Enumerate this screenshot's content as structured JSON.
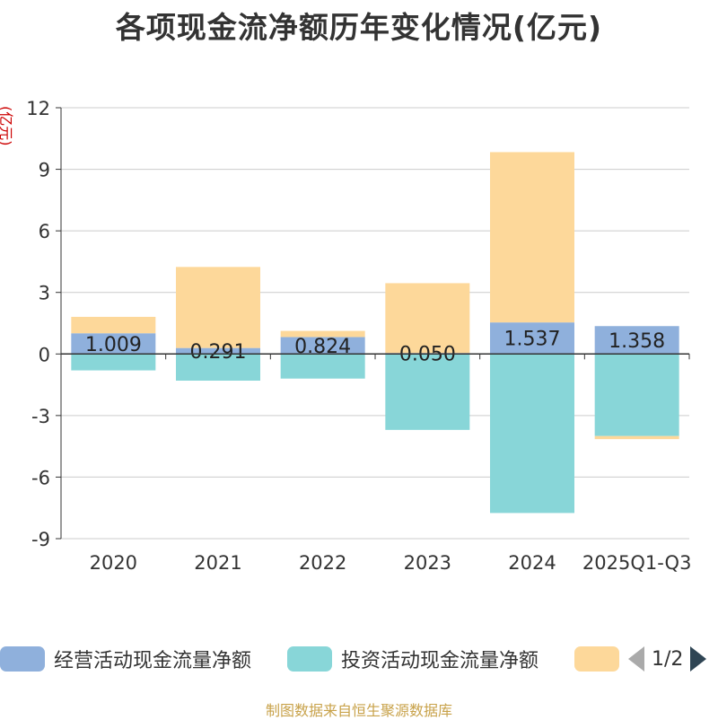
{
  "title": "各项现金流净额历年变化情况(亿元)",
  "y_unit": "(亿元)",
  "source": "制图数据来自恒生聚源数据库",
  "legend": {
    "items": [
      {
        "label": "经营活动现金流量净额",
        "color": "#8fb0dc"
      },
      {
        "label": "投资活动现金流量净额",
        "color": "#88d6d8"
      },
      {
        "label": "",
        "color": "#fdd89a"
      }
    ],
    "page": "1/2"
  },
  "chart_data": {
    "type": "bar",
    "stacked": true,
    "categories": [
      "2020",
      "2021",
      "2022",
      "2023",
      "2024",
      "2025Q1-Q3"
    ],
    "series": [
      {
        "name": "经营活动现金流量净额",
        "color": "#8fb0dc",
        "values": [
          1.009,
          0.291,
          0.824,
          0.05,
          1.537,
          1.358
        ]
      },
      {
        "name": "投资活动现金流量净额",
        "color": "#88d6d8",
        "values": [
          -0.8,
          -1.3,
          -1.2,
          -3.7,
          -7.75,
          -4.0
        ]
      },
      {
        "name": "",
        "color": "#fdd89a",
        "values": [
          0.8,
          3.95,
          0.3,
          3.4,
          8.3,
          -0.15
        ]
      }
    ],
    "data_labels": [
      "1.009",
      "0.291",
      "0.824",
      "0.050",
      "1.537",
      "1.358"
    ],
    "y_ticks": [
      12,
      9,
      6,
      3,
      0,
      -3,
      -6,
      -9
    ],
    "ylim": [
      -9,
      12
    ],
    "ylabel": "(亿元)",
    "grid": true
  }
}
